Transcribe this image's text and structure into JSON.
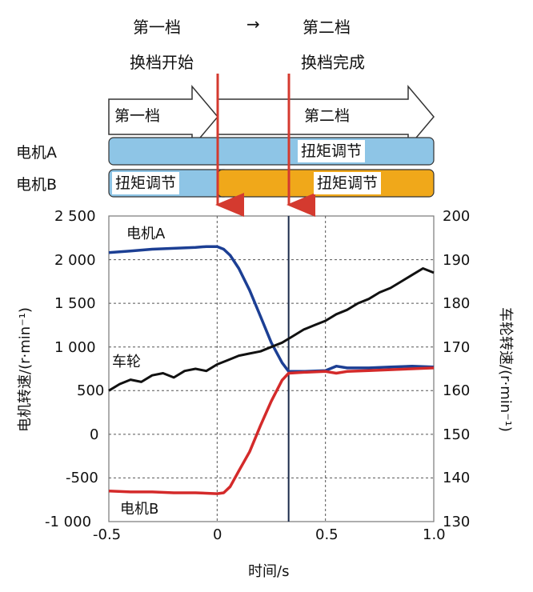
{
  "header": {
    "first_gear": "第一档",
    "arrow": "→",
    "second_gear": "第二档",
    "shift_start": "换档开始",
    "shift_done": "换档完成"
  },
  "timeline": {
    "gear_arrow_1": "第一档",
    "gear_arrow_2": "第二档",
    "motor_a_label": "电机A",
    "motor_b_label": "电机B",
    "torque_a": "扭矩调节",
    "torque_b_1": "扭矩调节",
    "torque_b_2": "扭矩调节",
    "colors": {
      "motor_a_bar": "#8ec5e6",
      "motor_b_bar": "#f0a81a",
      "shift_arrow": "#d43a2f"
    }
  },
  "chart_data": {
    "type": "line",
    "xlabel": "时间/s",
    "ylabel": "电机转速/(r·min⁻¹)",
    "y2label": "车轮转速/(r·min⁻¹)",
    "xlim": [
      -0.5,
      1.0
    ],
    "ylim": [
      -1000,
      2500
    ],
    "y2lim": [
      130,
      200
    ],
    "x_ticks": [
      "-0.5",
      "0",
      "0.5",
      "1.0"
    ],
    "y_ticks": [
      "-1 000",
      "-500",
      "0",
      "500",
      "1 000",
      "1 500",
      "2 000",
      "2 500"
    ],
    "y2_ticks": [
      "130",
      "140",
      "150",
      "160",
      "170",
      "180",
      "190",
      "200"
    ],
    "grid": "dashed",
    "vertical_markers": [
      0,
      0.33,
      0.5
    ],
    "series": [
      {
        "name": "电机A",
        "axis": "left",
        "color": "#1c3f94",
        "x": [
          -0.5,
          -0.4,
          -0.3,
          -0.2,
          -0.1,
          -0.05,
          0,
          0.03,
          0.06,
          0.1,
          0.15,
          0.2,
          0.25,
          0.3,
          0.33,
          0.4,
          0.5,
          0.55,
          0.6,
          0.7,
          0.8,
          0.9,
          1.0
        ],
        "values": [
          2080,
          2100,
          2120,
          2130,
          2140,
          2150,
          2150,
          2120,
          2050,
          1900,
          1650,
          1350,
          1050,
          820,
          720,
          720,
          730,
          780,
          760,
          760,
          770,
          780,
          770
        ]
      },
      {
        "name": "电机B",
        "axis": "left",
        "color": "#d42a2a",
        "x": [
          -0.5,
          -0.4,
          -0.3,
          -0.2,
          -0.1,
          0,
          0.03,
          0.06,
          0.1,
          0.15,
          0.2,
          0.25,
          0.3,
          0.33,
          0.4,
          0.5,
          0.55,
          0.6,
          0.7,
          0.8,
          0.9,
          1.0
        ],
        "values": [
          -650,
          -660,
          -660,
          -670,
          -670,
          -680,
          -670,
          -600,
          -420,
          -200,
          100,
          380,
          620,
          700,
          710,
          720,
          700,
          720,
          730,
          740,
          750,
          760
        ]
      },
      {
        "name": "车轮",
        "axis": "right",
        "color": "#111111",
        "x": [
          -0.5,
          -0.45,
          -0.4,
          -0.35,
          -0.3,
          -0.25,
          -0.2,
          -0.15,
          -0.1,
          -0.05,
          0,
          0.05,
          0.1,
          0.15,
          0.2,
          0.25,
          0.3,
          0.35,
          0.4,
          0.45,
          0.5,
          0.55,
          0.6,
          0.65,
          0.7,
          0.75,
          0.8,
          0.85,
          0.9,
          0.95,
          1.0
        ],
        "values": [
          160,
          161.5,
          162.5,
          162,
          163.5,
          164,
          163,
          164.5,
          165,
          164.5,
          166,
          167,
          168,
          168.5,
          169,
          170,
          171,
          172.5,
          174,
          175,
          176,
          177.5,
          178.5,
          180,
          181,
          182.5,
          183.5,
          185,
          186.5,
          188,
          187
        ]
      }
    ]
  }
}
